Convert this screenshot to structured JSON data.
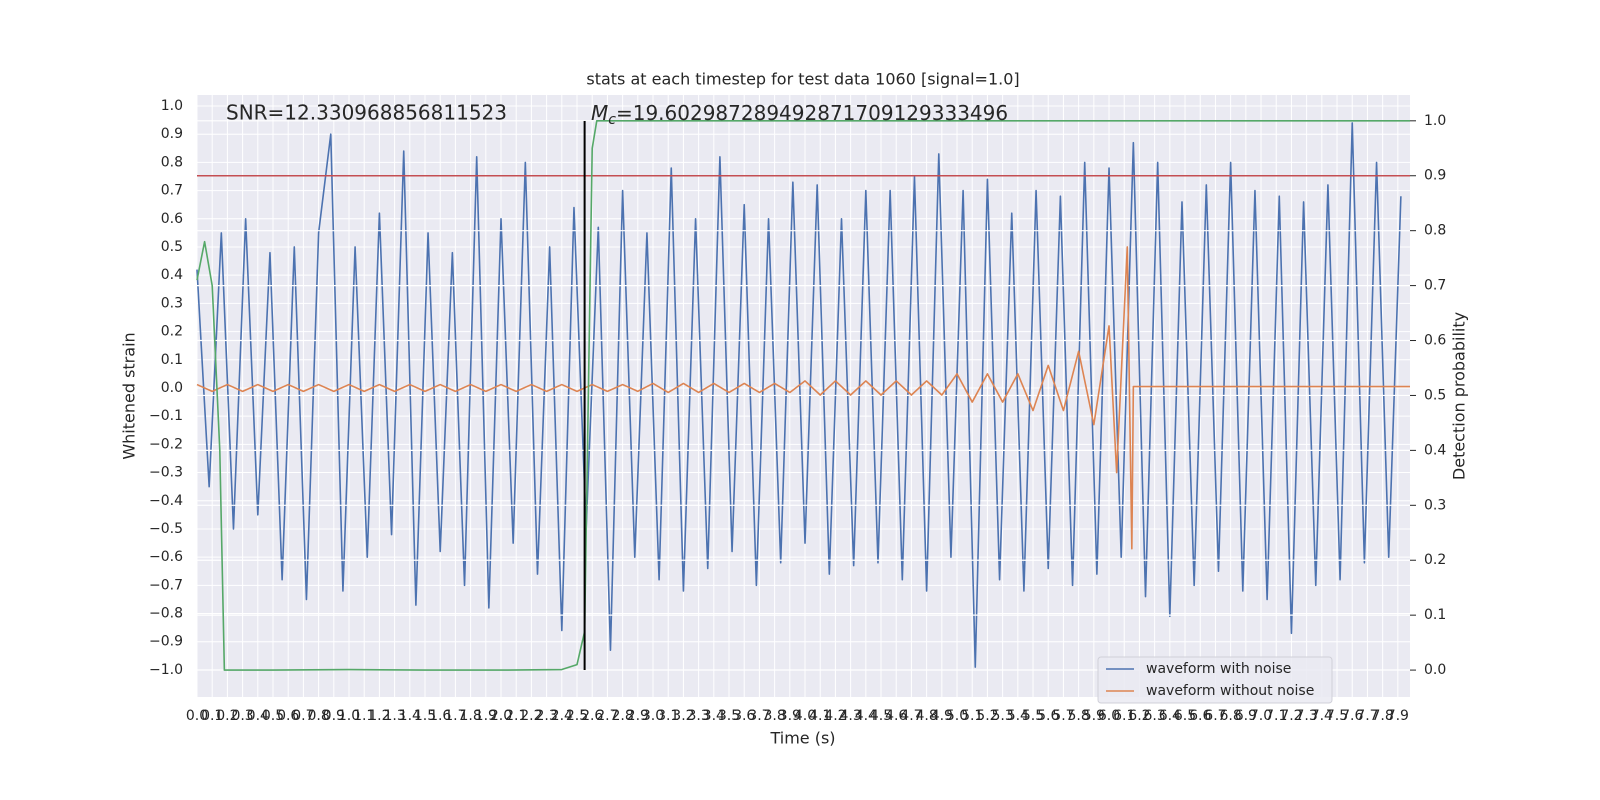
{
  "chart_data": {
    "type": "line",
    "title": "stats at each timestep for test data 1060 [signal=1.0]",
    "xlabel": "Time (s)",
    "ylabel": "Whitened strain",
    "y2label": "Detection probability",
    "annotations": {
      "snr": "SNR=12.330968856811523",
      "mc_symbol": "M",
      "mc_sub": "c",
      "mc_value": "=19.602987289492871709129333496"
    },
    "xlim": [
      0,
      7.98
    ],
    "ylim": [
      -1.096,
      1.039
    ],
    "y2lim": [
      -0.049,
      1.047
    ],
    "grid": true,
    "legend": "lower right",
    "xticks": [
      {
        "value": 0,
        "label": "0.0"
      },
      0.1,
      0.2,
      0.3,
      0.4,
      0.5,
      0.6,
      0.7,
      0.8,
      0.9,
      {
        "value": 1,
        "label": "1.0"
      },
      1.1,
      1.2,
      1.3,
      1.4,
      1.5,
      1.6,
      1.7,
      1.8,
      1.9,
      {
        "value": 2,
        "label": "2.0"
      },
      2.1,
      2.2,
      2.3,
      2.4,
      2.5,
      2.6,
      2.7,
      2.8,
      2.9,
      {
        "value": 3,
        "label": "3.0"
      },
      3.1,
      3.2,
      3.3,
      3.4,
      3.5,
      3.6,
      3.7,
      3.8,
      3.9,
      {
        "value": 4,
        "label": "4.0"
      },
      4.1,
      4.2,
      4.3,
      4.4,
      4.5,
      4.6,
      4.7,
      4.8,
      4.9,
      {
        "value": 5,
        "label": "5.0"
      },
      5.1,
      5.2,
      5.3,
      5.4,
      5.5,
      5.6,
      5.7,
      5.8,
      5.9,
      {
        "value": 6,
        "label": "6.0"
      },
      6.1,
      6.2,
      6.3,
      6.4,
      6.5,
      6.6,
      6.7,
      6.8,
      6.9,
      {
        "value": 7,
        "label": "7.0"
      },
      7.1,
      7.2,
      7.3,
      7.4,
      7.5,
      7.6,
      7.7,
      7.8,
      7.9
    ],
    "yticks": [
      {
        "value": -1,
        "label": "−1.0"
      },
      {
        "value": -0.9,
        "label": "−0.9"
      },
      {
        "value": -0.8,
        "label": "−0.8"
      },
      {
        "value": -0.7,
        "label": "−0.7"
      },
      {
        "value": -0.6,
        "label": "−0.6"
      },
      {
        "value": -0.5,
        "label": "−0.5"
      },
      {
        "value": -0.4,
        "label": "−0.4"
      },
      {
        "value": -0.3,
        "label": "−0.3"
      },
      {
        "value": -0.2,
        "label": "−0.2"
      },
      {
        "value": -0.1,
        "label": "−0.1"
      },
      {
        "value": 0,
        "label": "0.0"
      },
      0.1,
      0.2,
      0.3,
      0.4,
      0.5,
      0.6,
      0.7,
      0.8,
      0.9,
      {
        "value": 1,
        "label": "1.0"
      }
    ],
    "y2ticks": [
      {
        "value": 0,
        "label": "0.0"
      },
      0.1,
      0.2,
      0.3,
      0.4,
      0.5,
      0.6,
      0.7,
      0.8,
      0.9,
      {
        "value": 1,
        "label": "1.0"
      }
    ],
    "series": [
      {
        "name": "waveform with noise",
        "color": "#4c72b0",
        "x": [
          0,
          0.08,
          0.16,
          0.24,
          0.32,
          0.4,
          0.48,
          0.56,
          0.64,
          0.72,
          0.8,
          0.88,
          0.96,
          1.04,
          1.12,
          1.2,
          1.28,
          1.36,
          1.44,
          1.52,
          1.6,
          1.68,
          1.76,
          1.84,
          1.92,
          2,
          2.08,
          2.16,
          2.24,
          2.32,
          2.4,
          2.48,
          2.56,
          2.64,
          2.72,
          2.8,
          2.88,
          2.96,
          3.04,
          3.12,
          3.2,
          3.28,
          3.36,
          3.44,
          3.52,
          3.6,
          3.68,
          3.76,
          3.84,
          3.92,
          4,
          4.08,
          4.16,
          4.24,
          4.32,
          4.4,
          4.48,
          4.56,
          4.64,
          4.72,
          4.8,
          4.88,
          4.96,
          5.04,
          5.12,
          5.2,
          5.28,
          5.36,
          5.44,
          5.52,
          5.6,
          5.68,
          5.76,
          5.84,
          5.92,
          6,
          6.08,
          6.16,
          6.24,
          6.32,
          6.4,
          6.48,
          6.56,
          6.64,
          6.72,
          6.8,
          6.88,
          6.96,
          7.04,
          7.12,
          7.2,
          7.28,
          7.36,
          7.44,
          7.52,
          7.6,
          7.68,
          7.76,
          7.84,
          7.92
        ],
        "values": [
          0.42,
          -0.35,
          0.55,
          -0.5,
          0.6,
          -0.45,
          0.48,
          -0.68,
          0.5,
          -0.75,
          0.55,
          0.9,
          -0.72,
          0.5,
          -0.6,
          0.62,
          -0.52,
          0.84,
          -0.77,
          0.55,
          -0.58,
          0.48,
          -0.7,
          0.82,
          -0.78,
          0.6,
          -0.55,
          0.8,
          -0.66,
          0.5,
          -0.86,
          0.64,
          -0.5,
          0.57,
          -0.93,
          0.7,
          -0.6,
          0.55,
          -0.68,
          0.78,
          -0.72,
          0.6,
          -0.64,
          0.82,
          -0.58,
          0.65,
          -0.7,
          0.6,
          -0.62,
          0.73,
          -0.55,
          0.72,
          -0.66,
          0.6,
          -0.63,
          0.7,
          -0.62,
          0.7,
          -0.68,
          0.75,
          -0.72,
          0.83,
          -0.6,
          0.7,
          -0.99,
          0.74,
          -0.68,
          0.62,
          -0.72,
          0.7,
          -0.64,
          0.68,
          -0.7,
          0.8,
          -0.66,
          0.78,
          -0.6,
          0.87,
          -0.74,
          0.8,
          -0.81,
          0.66,
          -0.7,
          0.72,
          -0.65,
          0.8,
          -0.72,
          0.7,
          -0.75,
          0.68,
          -0.87,
          0.66,
          -0.7,
          0.72,
          -0.68,
          0.94,
          -0.62,
          0.8,
          -0.6,
          0.68
        ]
      },
      {
        "name": "waveform without noise",
        "color": "#dd8452",
        "x": [
          0,
          0.1,
          0.2,
          0.3,
          0.4,
          0.5,
          0.6,
          0.7,
          0.8,
          0.9,
          1,
          1.1,
          1.2,
          1.3,
          1.4,
          1.5,
          1.6,
          1.7,
          1.8,
          1.9,
          2,
          2.1,
          2.2,
          2.3,
          2.4,
          2.5,
          2.6,
          2.7,
          2.8,
          2.9,
          3,
          3.1,
          3.2,
          3.3,
          3.4,
          3.5,
          3.6,
          3.7,
          3.8,
          3.9,
          4,
          4.1,
          4.2,
          4.3,
          4.4,
          4.5,
          4.6,
          4.7,
          4.8,
          4.9,
          5,
          5.1,
          5.2,
          5.3,
          5.4,
          5.5,
          5.6,
          5.7,
          5.8,
          5.9,
          6,
          6.05,
          6.12,
          6.15,
          6.16,
          7.98
        ],
        "values": [
          0.012,
          -0.012,
          0.012,
          -0.012,
          0.012,
          -0.012,
          0.012,
          -0.012,
          0.012,
          -0.012,
          0.012,
          -0.012,
          0.012,
          -0.012,
          0.012,
          -0.012,
          0.012,
          -0.012,
          0.012,
          -0.012,
          0.012,
          -0.012,
          0.012,
          -0.012,
          0.012,
          -0.012,
          0.012,
          -0.012,
          0.012,
          -0.012,
          0.016,
          -0.016,
          0.016,
          -0.016,
          0.016,
          -0.016,
          0.016,
          -0.016,
          0.016,
          -0.016,
          0.025,
          -0.025,
          0.025,
          -0.025,
          0.025,
          -0.025,
          0.025,
          -0.025,
          0.025,
          -0.025,
          0.05,
          -0.05,
          0.05,
          -0.05,
          0.05,
          -0.08,
          0.08,
          -0.08,
          0.13,
          -0.13,
          0.22,
          -0.3,
          0.5,
          -0.57,
          0.005,
          0.005
        ]
      }
    ],
    "probability": {
      "color": "#55a868",
      "axis": "y2",
      "x": [
        0,
        0.05,
        0.1,
        0.15,
        0.18,
        0.5,
        1,
        1.5,
        2,
        2.4,
        2.5,
        2.55,
        2.6,
        2.63,
        7.98
      ],
      "values": [
        0.71,
        0.78,
        0.7,
        0.4,
        0,
        0,
        0.001,
        0,
        0,
        0.001,
        0.01,
        0.07,
        0.95,
        1,
        1
      ]
    },
    "threshold": {
      "value": 0.9,
      "color": "#c44e52",
      "axis": "y2"
    },
    "marker_line": {
      "x": 2.55,
      "color": "#000000"
    }
  }
}
